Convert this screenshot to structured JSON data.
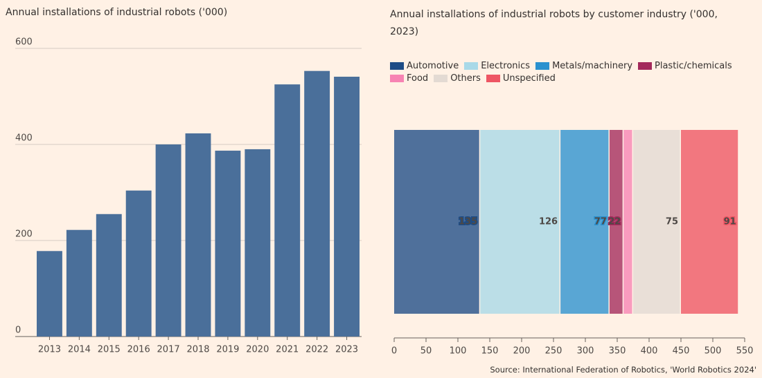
{
  "chart_data": [
    {
      "type": "bar",
      "title": "Annual installations of industrial robots ('000)",
      "categories": [
        "2013",
        "2014",
        "2015",
        "2016",
        "2017",
        "2018",
        "2019",
        "2020",
        "2021",
        "2022",
        "2023"
      ],
      "values": [
        178,
        222,
        255,
        304,
        400,
        423,
        387,
        390,
        525,
        553,
        541
      ],
      "color": "#4a6f9a",
      "ylim": [
        0,
        600
      ],
      "yticks": [
        0,
        200,
        400,
        600
      ],
      "grid": true
    },
    {
      "type": "stacked_barh",
      "title": "Annual installations of industrial robots by customer industry ('000, 2023)",
      "series": [
        {
          "name": "Automotive",
          "color": "#1d4c86",
          "values": [
            135
          ]
        },
        {
          "name": "Electronics",
          "color": "#a8d9e8",
          "values": [
            126
          ]
        },
        {
          "name": "Metals/machinery",
          "color": "#2a91cf",
          "values": [
            77
          ]
        },
        {
          "name": "Plastic/chemicals",
          "color": "#a3295b",
          "values": [
            22
          ]
        },
        {
          "name": "Food",
          "color": "#f783b3",
          "values": [
            15
          ]
        },
        {
          "name": "Others",
          "color": "#e3dad3",
          "values": [
            75
          ]
        },
        {
          "name": "Unspecified",
          "color": "#ee5563",
          "values": [
            91
          ]
        }
      ],
      "xlim": [
        0,
        550
      ],
      "xticks": [
        0,
        50,
        100,
        150,
        200,
        250,
        300,
        350,
        400,
        450,
        500,
        550
      ],
      "legend": "top-left",
      "source": "Source: International Federation of Robotics, 'World Robotics 2024'"
    }
  ]
}
